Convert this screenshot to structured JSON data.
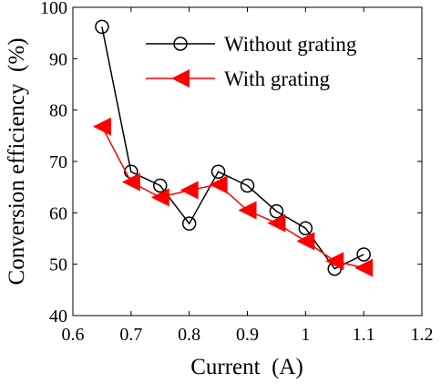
{
  "chart_data": {
    "type": "line",
    "xlabel": "Current  (A)",
    "ylabel": "Conversion efficiency  (%)",
    "xlim": [
      0.6,
      1.2
    ],
    "ylim": [
      40,
      100
    ],
    "xticks": [
      "0.6",
      "0.7",
      "0.8",
      "0.9",
      "1",
      "1.1",
      "1.2"
    ],
    "yticks": [
      "40",
      "50",
      "60",
      "70",
      "80",
      "90",
      "100"
    ],
    "grid": false,
    "legend_position": "top-right",
    "series": [
      {
        "name": "Without grating",
        "color": "#000000",
        "marker": "circle",
        "x": [
          0.65,
          0.7,
          0.75,
          0.8,
          0.85,
          0.9,
          0.95,
          1.0,
          1.05,
          1.1
        ],
        "y": [
          96.2,
          68.0,
          65.3,
          57.9,
          68.0,
          65.3,
          60.3,
          57.0,
          49.1,
          51.9
        ]
      },
      {
        "name": "With grating",
        "color": "#ff0000",
        "marker": "triangle-left",
        "x": [
          0.65,
          0.7,
          0.75,
          0.8,
          0.85,
          0.9,
          0.95,
          1.0,
          1.05,
          1.1
        ],
        "y": [
          76.8,
          66.0,
          63.0,
          64.4,
          65.5,
          60.5,
          58.0,
          54.5,
          50.6,
          49.3
        ]
      }
    ]
  }
}
